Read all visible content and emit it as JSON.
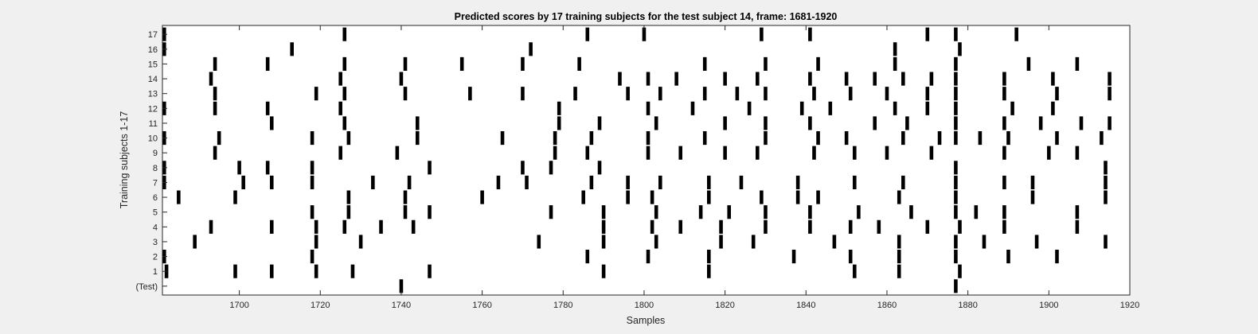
{
  "chart_data": {
    "type": "scatter",
    "title": "Predicted scores by 17 training subjects for the test subject 14, frame: 1681-1920",
    "xlabel": "Samples",
    "ylabel": "Training subjects 1-17",
    "xlim": [
      1681,
      1920
    ],
    "xticks": [
      1700,
      1720,
      1740,
      1760,
      1780,
      1800,
      1820,
      1840,
      1860,
      1880,
      1900,
      1920
    ],
    "yticklabels": [
      "(Test)",
      "1",
      "2",
      "3",
      "4",
      "5",
      "6",
      "7",
      "8",
      "9",
      "10",
      "11",
      "12",
      "13",
      "14",
      "15",
      "16",
      "17"
    ],
    "grid": false,
    "legend": "none",
    "marker_color": "#000000",
    "series": [
      {
        "row": "(Test)",
        "x": [
          1740,
          1877
        ]
      },
      {
        "row": "1",
        "x": [
          1682,
          1699,
          1708,
          1719,
          1728,
          1747,
          1790,
          1816,
          1852,
          1863,
          1878
        ]
      },
      {
        "row": "2",
        "x": [
          1681,
          1718,
          1786,
          1801,
          1816,
          1837,
          1851,
          1863,
          1877,
          1890,
          1902
        ]
      },
      {
        "row": "3",
        "x": [
          1689,
          1719,
          1730,
          1774,
          1790,
          1803,
          1819,
          1827,
          1847,
          1863,
          1877,
          1884,
          1897,
          1914
        ]
      },
      {
        "row": "4",
        "x": [
          1693,
          1708,
          1719,
          1726,
          1735,
          1743,
          1790,
          1802,
          1809,
          1819,
          1830,
          1841,
          1851,
          1858,
          1870,
          1878,
          1889,
          1907
        ]
      },
      {
        "row": "5",
        "x": [
          1718,
          1727,
          1741,
          1747,
          1777,
          1790,
          1803,
          1814,
          1821,
          1830,
          1841,
          1853,
          1866,
          1877,
          1882,
          1889,
          1907
        ]
      },
      {
        "row": "6",
        "x": [
          1685,
          1699,
          1727,
          1741,
          1760,
          1785,
          1796,
          1802,
          1816,
          1829,
          1838,
          1843,
          1863,
          1877,
          1896,
          1914
        ]
      },
      {
        "row": "7",
        "x": [
          1681,
          1701,
          1708,
          1718,
          1733,
          1742,
          1764,
          1771,
          1787,
          1796,
          1804,
          1816,
          1824,
          1838,
          1852,
          1864,
          1877,
          1889,
          1896,
          1914
        ]
      },
      {
        "row": "8",
        "x": [
          1681,
          1700,
          1707,
          1718,
          1747,
          1770,
          1777,
          1789,
          1877,
          1914
        ]
      },
      {
        "row": "9",
        "x": [
          1694,
          1725,
          1739,
          1778,
          1786,
          1801,
          1809,
          1820,
          1828,
          1842,
          1852,
          1860,
          1871,
          1889,
          1900,
          1907
        ]
      },
      {
        "row": "10",
        "x": [
          1681,
          1695,
          1718,
          1727,
          1744,
          1765,
          1778,
          1787,
          1801,
          1815,
          1830,
          1843,
          1850,
          1864,
          1873,
          1877,
          1883,
          1890,
          1902,
          1913
        ]
      },
      {
        "row": "11",
        "x": [
          1708,
          1726,
          1744,
          1779,
          1789,
          1803,
          1820,
          1830,
          1841,
          1857,
          1865,
          1877,
          1889,
          1898,
          1908,
          1915
        ]
      },
      {
        "row": "12",
        "x": [
          1681,
          1694,
          1707,
          1725,
          1779,
          1801,
          1812,
          1826,
          1839,
          1846,
          1862,
          1870,
          1877,
          1891,
          1901
        ]
      },
      {
        "row": "13",
        "x": [
          1694,
          1719,
          1726,
          1741,
          1757,
          1770,
          1783,
          1796,
          1804,
          1815,
          1823,
          1830,
          1842,
          1851,
          1860,
          1870,
          1877,
          1889,
          1902,
          1915
        ]
      },
      {
        "row": "14",
        "x": [
          1693,
          1725,
          1740,
          1794,
          1801,
          1808,
          1820,
          1828,
          1841,
          1850,
          1857,
          1864,
          1871,
          1877,
          1889,
          1901,
          1915
        ]
      },
      {
        "row": "15",
        "x": [
          1694,
          1707,
          1726,
          1741,
          1755,
          1770,
          1784,
          1815,
          1830,
          1843,
          1862,
          1877,
          1895,
          1907
        ]
      },
      {
        "row": "16",
        "x": [
          1681,
          1713,
          1772,
          1862,
          1878
        ]
      },
      {
        "row": "17",
        "x": [
          1681,
          1726,
          1786,
          1800,
          1829,
          1841,
          1870,
          1877,
          1892
        ]
      }
    ]
  }
}
